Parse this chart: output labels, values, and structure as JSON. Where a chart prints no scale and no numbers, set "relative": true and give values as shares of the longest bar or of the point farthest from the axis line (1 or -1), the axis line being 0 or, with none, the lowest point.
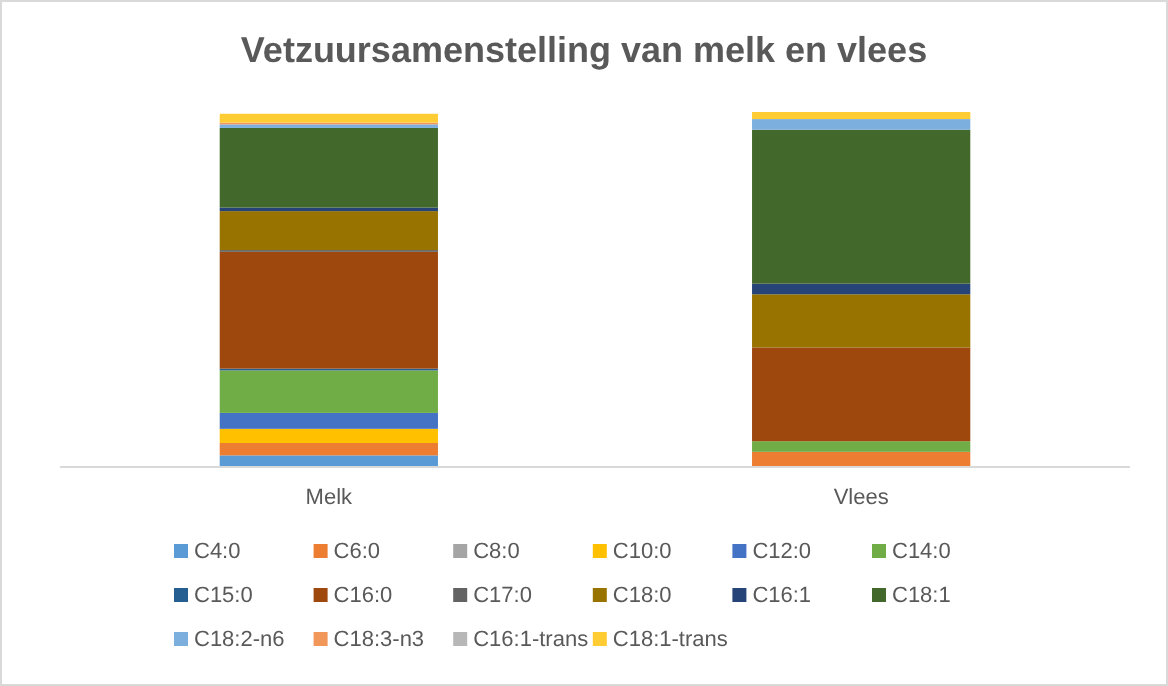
{
  "chart_data": {
    "type": "bar",
    "title": "Vetzuursamenstelling van melk en vlees",
    "categories": [
      "Melk",
      "Vlees"
    ],
    "stacked": true,
    "relative": true,
    "legend": "bottom",
    "series": [
      {
        "name": "C4:0",
        "color": "#5b9bd5",
        "values": [
          0.03,
          0
        ]
      },
      {
        "name": "C6:0",
        "color": "#ed7d31",
        "values": [
          0.035,
          0.04
        ]
      },
      {
        "name": "C8:0",
        "color": "#a5a5a5",
        "values": [
          null,
          0
        ]
      },
      {
        "name": "C10:0",
        "color": "#ffc000",
        "values": [
          0.04,
          0
        ]
      },
      {
        "name": "C12:0",
        "color": "#4472c4",
        "values": [
          0.045,
          0
        ]
      },
      {
        "name": "C14:0",
        "color": "#70ad47",
        "values": [
          0.12,
          0.03
        ]
      },
      {
        "name": "C15:0",
        "color": "#255e91",
        "values": [
          0.005,
          0
        ]
      },
      {
        "name": "C16:0",
        "color": "#9e480e",
        "values": [
          0.33,
          0.265
        ]
      },
      {
        "name": "C17:0",
        "color": "#636363",
        "values": [
          0.005,
          0
        ]
      },
      {
        "name": "C18:0",
        "color": "#997300",
        "values": [
          0.11,
          0.15
        ]
      },
      {
        "name": "C16:1",
        "color": "#264478",
        "values": [
          0.01,
          0.03
        ]
      },
      {
        "name": "C18:1",
        "color": "#43682b",
        "values": [
          0.225,
          0.435
        ]
      },
      {
        "name": "C18:2-n6",
        "color": "#7cafdd",
        "values": [
          0.01,
          0.03
        ]
      },
      {
        "name": "C18:3-n3",
        "color": "#f1975a",
        "values": [
          0.005,
          0
        ]
      },
      {
        "name": "C16:1-trans",
        "color": "#b7b7b7",
        "values": [
          0,
          0
        ]
      },
      {
        "name": "C18:1-trans",
        "color": "#ffcd33",
        "values": [
          0.025,
          0.02
        ]
      }
    ]
  }
}
